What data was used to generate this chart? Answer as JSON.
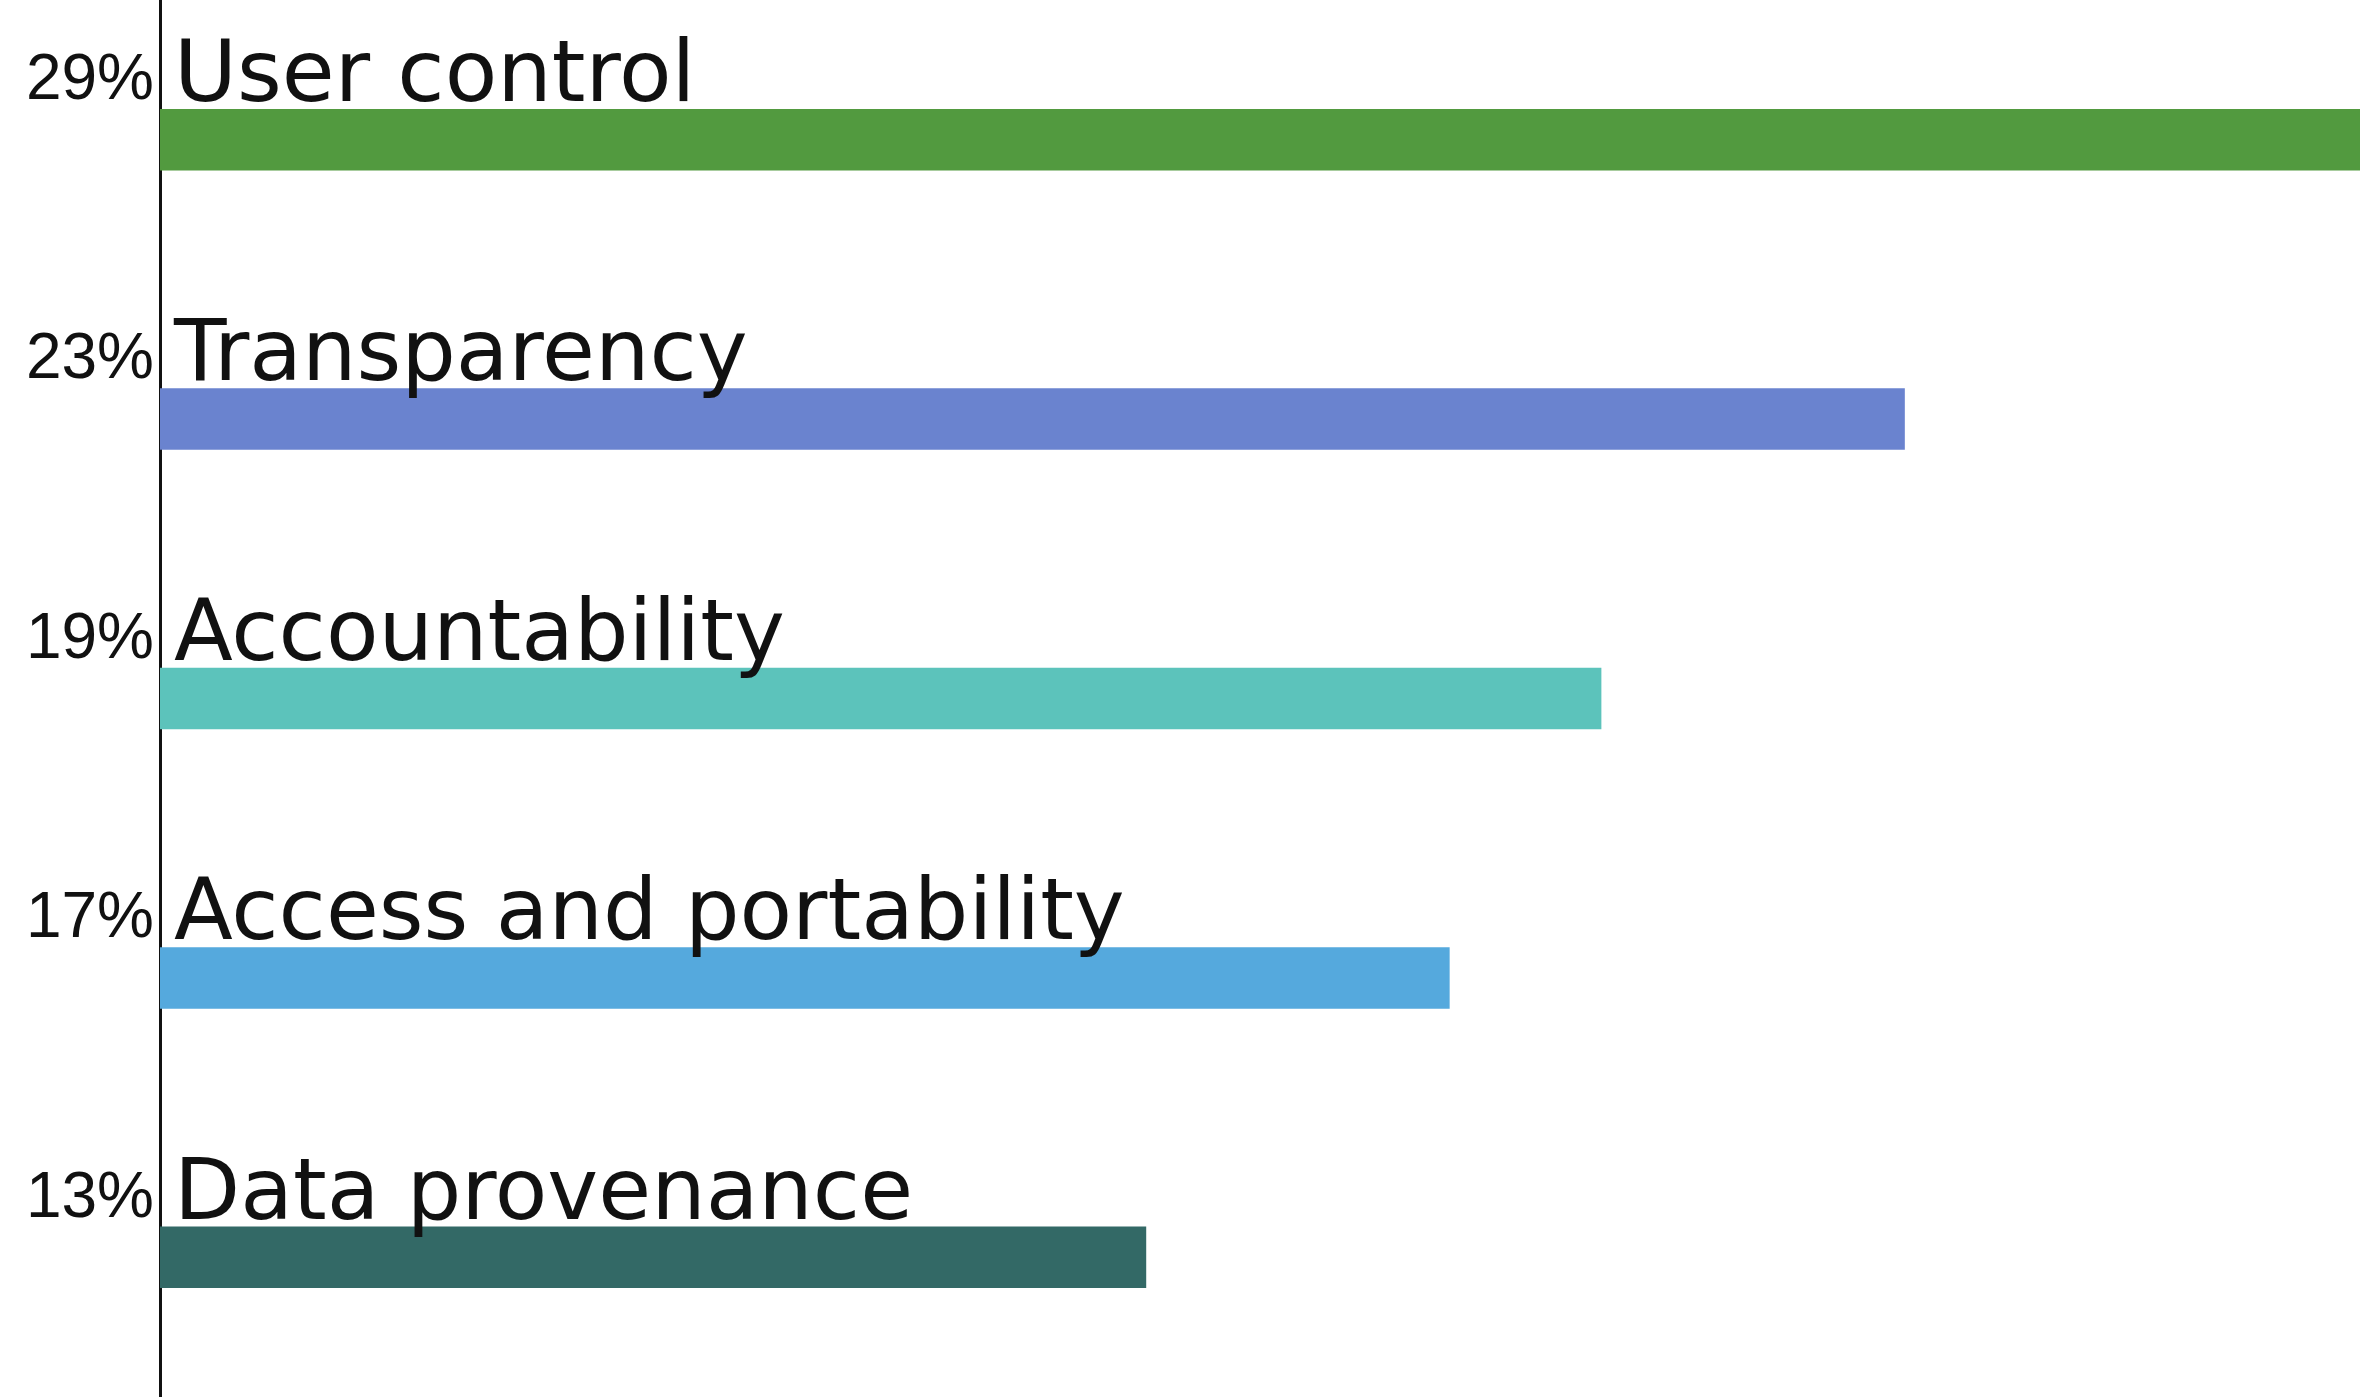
{
  "chart_data": {
    "type": "bar",
    "orientation": "horizontal",
    "categories": [
      "User control",
      "Transparency",
      "Accountability",
      "Access and portability",
      "Data provenance"
    ],
    "values": [
      29,
      23,
      19,
      17,
      13
    ],
    "colors": [
      "#529a3f",
      "#6a83cf",
      "#5cc3bb",
      "#55a9dd",
      "#336966"
    ],
    "value_labels": [
      "29%",
      "23%",
      "19%",
      "17%",
      "13%"
    ],
    "legend": false,
    "grid": false
  }
}
